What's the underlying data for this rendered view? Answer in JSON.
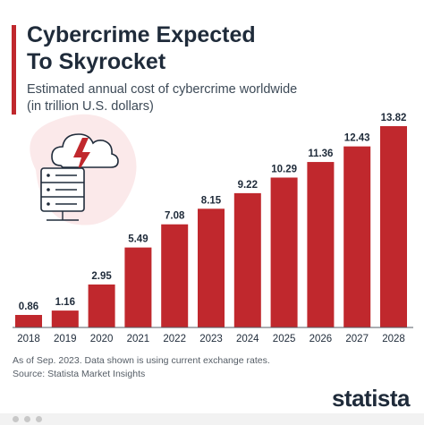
{
  "title": "Cybercrime Expected\nTo Skyrocket",
  "subtitle": "Estimated annual cost of cybercrime worldwide\n(in trillion U.S. dollars)",
  "footnote": {
    "line1": "As of Sep. 2023. Data shown is using current exchange rates.",
    "line2": "Source: Statista Market Insights"
  },
  "brand": "statista",
  "colors": {
    "bar": "#c0282d",
    "title": "#1f2b3a",
    "illustration_bg": "#fbe9ea"
  },
  "illustration_icon": "cloud-server-lightning-icon",
  "chart_data": {
    "type": "bar",
    "categories": [
      "2018",
      "2019",
      "2020",
      "2021",
      "2022",
      "2023",
      "2024",
      "2025",
      "2026",
      "2027",
      "2028"
    ],
    "values": [
      0.86,
      1.16,
      2.95,
      5.49,
      7.08,
      8.15,
      9.22,
      10.29,
      11.36,
      12.43,
      13.82
    ],
    "value_labels": [
      "0.86",
      "1.16",
      "2.95",
      "5.49",
      "7.08",
      "8.15",
      "9.22",
      "10.29",
      "11.36",
      "12.43",
      "13.82"
    ],
    "ylim": [
      0,
      13.82
    ],
    "grid": false,
    "legend": "none"
  }
}
